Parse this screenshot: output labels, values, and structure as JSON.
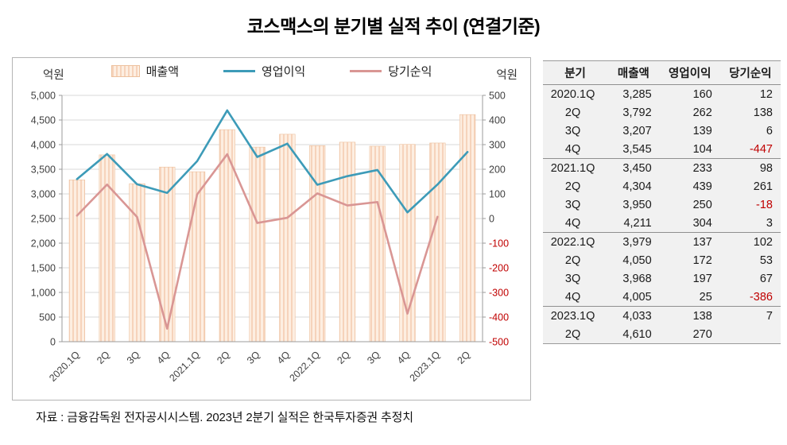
{
  "title": "코스맥스의 분기별 실적 추이 (연결기준)",
  "footer": "자료 : 금융감독원 전자공시시스템. 2023년 2분기 실적은 한국투자증권 추정치",
  "legend": {
    "revenue": "매출액",
    "operating_profit": "영업이익",
    "net_profit": "당기순익"
  },
  "axes": {
    "left_unit": "억원",
    "right_unit": "억원"
  },
  "chart_data": {
    "type": "bar",
    "subtype": "combo-bar-line",
    "title": "코스맥스의 분기별 실적 추이 (연결기준)",
    "categories": [
      "2020.1Q",
      "2Q",
      "3Q",
      "4Q",
      "2021.1Q",
      "2Q",
      "3Q",
      "4Q",
      "2022.1Q",
      "2Q",
      "3Q",
      "4Q",
      "2023.1Q",
      "2Q"
    ],
    "series": [
      {
        "name": "매출액",
        "type": "bar",
        "axis": "left",
        "color": "#fbe5d4",
        "values": [
          3285,
          3792,
          3207,
          3545,
          3450,
          4304,
          3950,
          4211,
          3979,
          4050,
          3968,
          4005,
          4033,
          4610
        ]
      },
      {
        "name": "영업이익",
        "type": "line",
        "axis": "right",
        "color": "#3d9bb8",
        "values": [
          160,
          262,
          139,
          104,
          233,
          439,
          250,
          304,
          137,
          172,
          197,
          25,
          138,
          270
        ]
      },
      {
        "name": "당기순익",
        "type": "line",
        "axis": "right",
        "color": "#d99694",
        "values": [
          12,
          138,
          6,
          -447,
          98,
          261,
          -18,
          3,
          102,
          53,
          67,
          -386,
          7,
          null
        ]
      }
    ],
    "left_axis": {
      "unit": "억원",
      "min": 0,
      "max": 5000,
      "step": 500
    },
    "right_axis": {
      "unit": "억원",
      "min": -500,
      "max": 500,
      "step": 100
    },
    "grid": true,
    "legend_position": "top",
    "style": {
      "bar_fill": "#fdeee1",
      "bar_stripe": "#f6d3bb",
      "bar_border": "#edc19e",
      "line_operating": "#3d9bb8",
      "line_net": "#d99694",
      "negative_color": "#c00000",
      "grid_color": "#d9d9d9",
      "axis_color": "#9b9b9b",
      "tick_text_color": "#404040"
    }
  },
  "table": {
    "headers": [
      "분기",
      "매출액",
      "영업이익",
      "당기순익"
    ],
    "rows": [
      [
        "2020.1Q",
        "3,285",
        "160",
        "12"
      ],
      [
        "2Q",
        "3,792",
        "262",
        "138"
      ],
      [
        "3Q",
        "3,207",
        "139",
        "6"
      ],
      [
        "4Q",
        "3,545",
        "104",
        "-447"
      ],
      [
        "2021.1Q",
        "3,450",
        "233",
        "98"
      ],
      [
        "2Q",
        "4,304",
        "439",
        "261"
      ],
      [
        "3Q",
        "3,950",
        "250",
        "-18"
      ],
      [
        "4Q",
        "4,211",
        "304",
        "3"
      ],
      [
        "2022.1Q",
        "3,979",
        "137",
        "102"
      ],
      [
        "2Q",
        "4,050",
        "172",
        "53"
      ],
      [
        "3Q",
        "3,968",
        "197",
        "67"
      ],
      [
        "4Q",
        "4,005",
        "25",
        "-386"
      ],
      [
        "2023.1Q",
        "4,033",
        "138",
        "7"
      ],
      [
        "2Q",
        "4,610",
        "270",
        ""
      ]
    ]
  }
}
